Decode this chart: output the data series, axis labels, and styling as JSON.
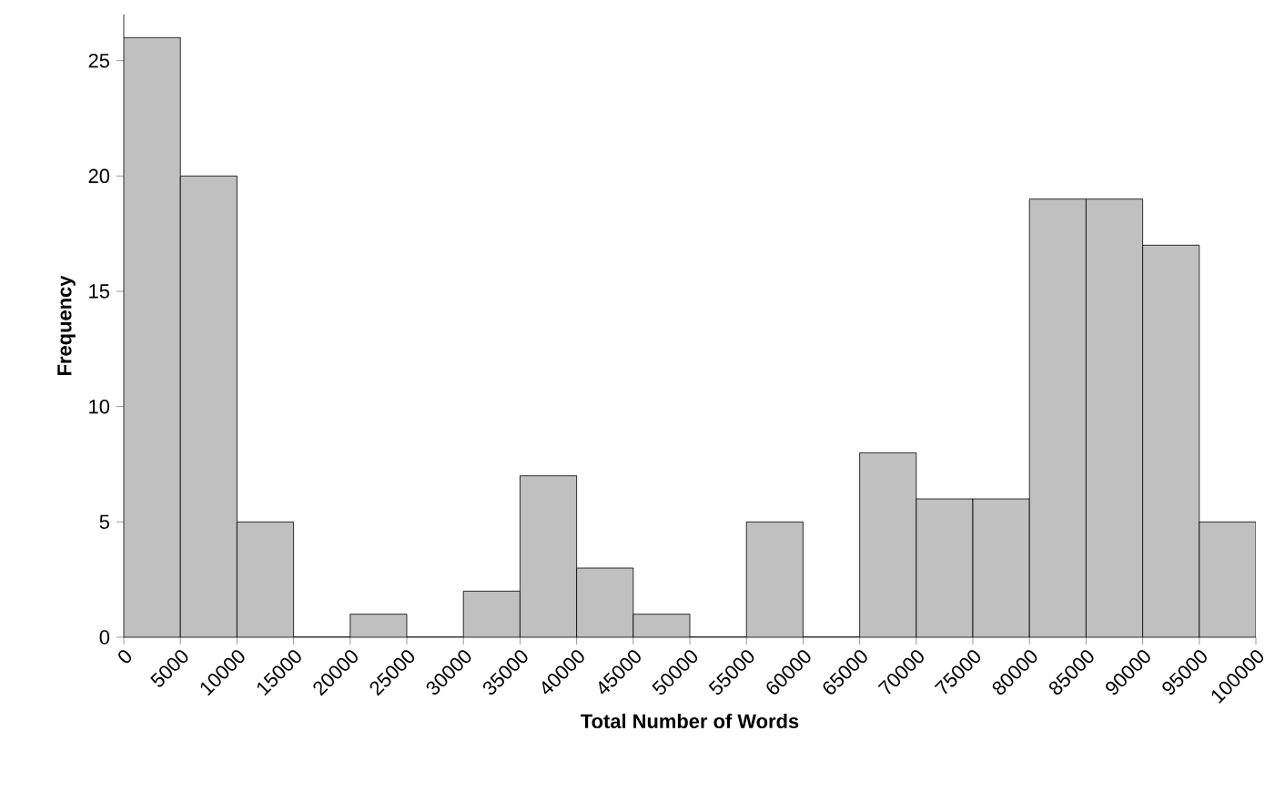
{
  "chart_data": {
    "type": "histogram",
    "xlabel": "Total Number of Words",
    "ylabel": "Frequency",
    "bins": [
      0,
      5000,
      10000,
      15000,
      20000,
      25000,
      30000,
      35000,
      40000,
      45000,
      50000,
      55000,
      60000,
      65000,
      70000,
      75000,
      80000,
      85000,
      90000,
      95000,
      100000
    ],
    "values": [
      26,
      20,
      5,
      0,
      1,
      0,
      2,
      7,
      3,
      1,
      0,
      5,
      0,
      8,
      6,
      6,
      19,
      19,
      17,
      5
    ],
    "color": "#c0c0c0",
    "xlim": [
      0,
      100000
    ],
    "ylim": [
      0,
      27
    ],
    "xticks": [
      0,
      5000,
      10000,
      15000,
      20000,
      25000,
      30000,
      35000,
      40000,
      45000,
      50000,
      55000,
      60000,
      65000,
      70000,
      75000,
      80000,
      85000,
      90000,
      95000,
      100000
    ],
    "yticks": [
      0,
      5,
      10,
      15,
      20,
      25
    ]
  }
}
